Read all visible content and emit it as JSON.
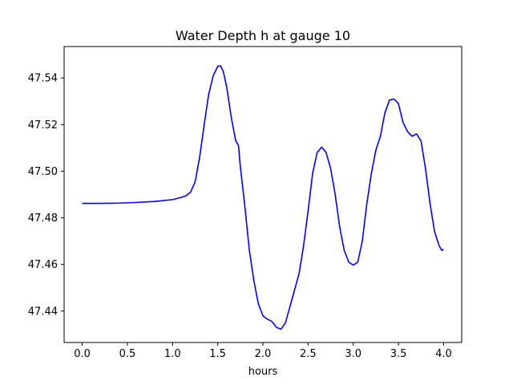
{
  "chart_data": {
    "type": "line",
    "title": "Water Depth h at gauge 10",
    "xlabel": "hours",
    "ylabel": "",
    "xlim": [
      -0.2,
      4.2
    ],
    "ylim": [
      47.4265,
      47.5535
    ],
    "xticks": [
      0.0,
      0.5,
      1.0,
      1.5,
      2.0,
      2.5,
      3.0,
      3.5,
      4.0
    ],
    "xtick_labels": [
      "0.0",
      "0.5",
      "1.0",
      "1.5",
      "2.0",
      "2.5",
      "3.0",
      "3.5",
      "4.0"
    ],
    "yticks": [
      47.44,
      47.46,
      47.48,
      47.5,
      47.52,
      47.54
    ],
    "ytick_labels": [
      "47.44",
      "47.46",
      "47.48",
      "47.50",
      "47.52",
      "47.54"
    ],
    "grid": false,
    "series": [
      {
        "color": "#0000ff",
        "x": [
          0.0,
          0.2,
          0.4,
          0.6,
          0.8,
          1.0,
          1.1,
          1.15,
          1.2,
          1.25,
          1.3,
          1.35,
          1.4,
          1.45,
          1.5,
          1.53,
          1.56,
          1.6,
          1.65,
          1.7,
          1.73,
          1.75,
          1.8,
          1.85,
          1.9,
          1.95,
          2.0,
          2.03,
          2.05,
          2.1,
          2.15,
          2.2,
          2.25,
          2.3,
          2.35,
          2.4,
          2.45,
          2.5,
          2.55,
          2.6,
          2.65,
          2.7,
          2.75,
          2.8,
          2.85,
          2.9,
          2.95,
          3.0,
          3.05,
          3.1,
          3.15,
          3.2,
          3.25,
          3.3,
          3.35,
          3.4,
          3.45,
          3.5,
          3.55,
          3.6,
          3.65,
          3.7,
          3.75,
          3.8,
          3.85,
          3.9,
          3.95,
          3.98,
          4.0
        ],
        "y": [
          47.4862,
          47.4862,
          47.4863,
          47.4866,
          47.487,
          47.4878,
          47.4888,
          47.4895,
          47.491,
          47.4955,
          47.506,
          47.52,
          47.533,
          47.541,
          47.545,
          47.5452,
          47.543,
          47.536,
          47.523,
          47.513,
          47.511,
          47.502,
          47.485,
          47.466,
          47.453,
          47.443,
          47.438,
          47.437,
          47.4365,
          47.4355,
          47.433,
          47.4322,
          47.435,
          47.442,
          47.449,
          47.456,
          47.468,
          47.483,
          47.499,
          47.508,
          47.5103,
          47.508,
          47.501,
          47.49,
          47.476,
          47.466,
          47.461,
          47.4597,
          47.461,
          47.47,
          47.486,
          47.499,
          47.509,
          47.515,
          47.525,
          47.5305,
          47.531,
          47.529,
          47.521,
          47.517,
          47.515,
          47.516,
          47.513,
          47.501,
          47.486,
          47.474,
          47.468,
          47.466,
          47.4665
        ]
      }
    ]
  }
}
